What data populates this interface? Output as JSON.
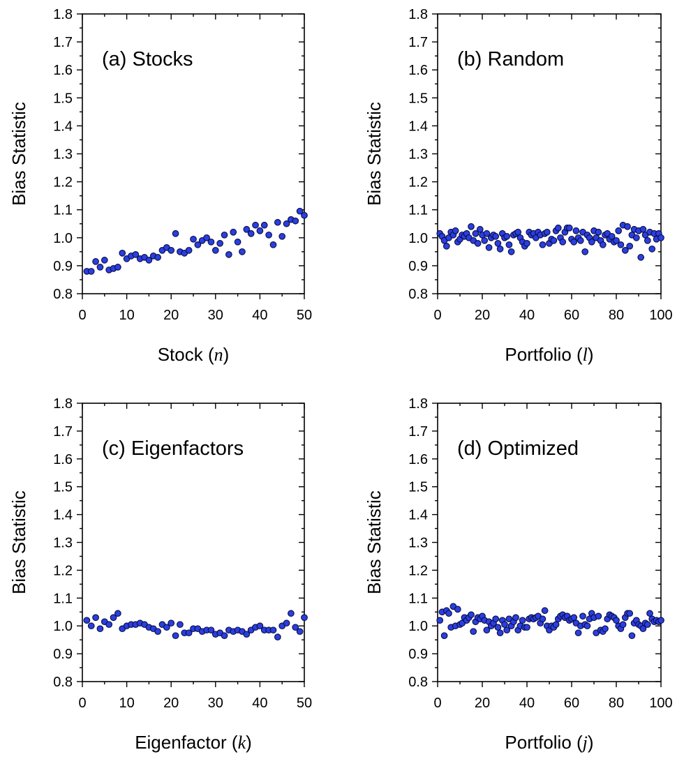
{
  "chart_data": [
    {
      "type": "scatter",
      "panel_label": "(a) Stocks",
      "xlabel": "Stock",
      "xlabel_var": "n",
      "ylabel": "Bias Statistic",
      "xlim": [
        0,
        50
      ],
      "ylim": [
        0.8,
        1.8
      ],
      "xticks": [
        0,
        10,
        20,
        30,
        40,
        50
      ],
      "yticks": [
        0.8,
        0.9,
        1.0,
        1.1,
        1.2,
        1.3,
        1.4,
        1.5,
        1.6,
        1.7,
        1.8
      ],
      "grid": false,
      "marker_color": "#2a3fe0",
      "x": [
        1,
        2,
        3,
        4,
        5,
        6,
        7,
        8,
        9,
        10,
        11,
        12,
        13,
        14,
        15,
        16,
        17,
        18,
        19,
        20,
        21,
        22,
        23,
        24,
        25,
        26,
        27,
        28,
        29,
        30,
        31,
        32,
        33,
        34,
        35,
        36,
        37,
        38,
        39,
        40,
        41,
        42,
        43,
        44,
        45,
        46,
        47,
        48,
        49,
        50
      ],
      "y": [
        0.88,
        0.88,
        0.915,
        0.895,
        0.92,
        0.885,
        0.89,
        0.895,
        0.945,
        0.925,
        0.935,
        0.94,
        0.925,
        0.93,
        0.92,
        0.935,
        0.93,
        0.955,
        0.965,
        0.955,
        1.015,
        0.95,
        0.945,
        0.955,
        0.995,
        0.975,
        0.99,
        1.0,
        0.985,
        0.955,
        0.98,
        1.01,
        0.94,
        1.02,
        0.985,
        0.95,
        1.03,
        1.015,
        1.045,
        1.025,
        1.045,
        1.01,
        0.975,
        1.055,
        1.005,
        1.05,
        1.065,
        1.06,
        1.095,
        1.08
      ]
    },
    {
      "type": "scatter",
      "panel_label": "(b) Random",
      "xlabel": "Portfolio",
      "xlabel_var": "l",
      "ylabel": "Bias Statistic",
      "xlim": [
        0,
        100
      ],
      "ylim": [
        0.8,
        1.8
      ],
      "xticks": [
        0,
        20,
        40,
        60,
        80,
        100
      ],
      "yticks": [
        0.8,
        0.9,
        1.0,
        1.1,
        1.2,
        1.3,
        1.4,
        1.5,
        1.6,
        1.7,
        1.8
      ],
      "grid": false,
      "marker_color": "#2a3fe0",
      "x": [
        1,
        2,
        3,
        4,
        5,
        6,
        7,
        8,
        9,
        10,
        11,
        12,
        13,
        14,
        15,
        16,
        17,
        18,
        19,
        20,
        21,
        22,
        23,
        24,
        25,
        26,
        27,
        28,
        29,
        30,
        31,
        32,
        33,
        34,
        35,
        36,
        37,
        38,
        39,
        40,
        41,
        42,
        43,
        44,
        45,
        46,
        47,
        48,
        49,
        50,
        51,
        52,
        53,
        54,
        55,
        56,
        57,
        58,
        59,
        60,
        61,
        62,
        63,
        64,
        65,
        66,
        67,
        68,
        69,
        70,
        71,
        72,
        73,
        74,
        75,
        76,
        77,
        78,
        79,
        80,
        81,
        82,
        83,
        84,
        85,
        86,
        87,
        88,
        89,
        90,
        91,
        92,
        93,
        94,
        95,
        96,
        97,
        98,
        99,
        100
      ],
      "y": [
        1.015,
        1.005,
        0.99,
        0.97,
        1.0,
        1.02,
        1.01,
        1.025,
        0.985,
        0.995,
        1.01,
        1.005,
        1.015,
        1.0,
        1.04,
        0.99,
        1.015,
        0.98,
        1.03,
        1.01,
        0.99,
        1.015,
        0.965,
        1.0,
        1.01,
        1.005,
        0.98,
        0.96,
        1.015,
        1.0,
        1.005,
        0.975,
        0.95,
        1.01,
        1.015,
        1.02,
        1.0,
        0.985,
        0.97,
        0.98,
        1.02,
        1.01,
        1.015,
        1.0,
        1.02,
        1.01,
        0.975,
        1.015,
        1.02,
        0.98,
        0.995,
        0.99,
        1.025,
        1.035,
        1.0,
        0.985,
        1.02,
        1.035,
        1.035,
        0.995,
        0.985,
        1.025,
        1.0,
        0.99,
        1.02,
        0.95,
        1.01,
        1.0,
        0.985,
        1.025,
        1.0,
        1.02,
        0.99,
        0.975,
        1.01,
        1.015,
        0.995,
        1.005,
        0.985,
        0.99,
        1.025,
        0.975,
        1.045,
        0.955,
        1.04,
        0.97,
        1.01,
        1.03,
        1.0,
        1.025,
        0.93,
        1.03,
        1.01,
        0.99,
        1.02,
        0.96,
        1.015,
        0.995,
        1.015,
        1.0
      ]
    },
    {
      "type": "scatter",
      "panel_label": "(c) Eigenfactors",
      "xlabel": "Eigenfactor",
      "xlabel_var": "k",
      "ylabel": "Bias Statistic",
      "xlim": [
        0,
        50
      ],
      "ylim": [
        0.8,
        1.8
      ],
      "xticks": [
        0,
        10,
        20,
        30,
        40,
        50
      ],
      "yticks": [
        0.8,
        0.9,
        1.0,
        1.1,
        1.2,
        1.3,
        1.4,
        1.5,
        1.6,
        1.7,
        1.8
      ],
      "grid": false,
      "marker_color": "#2a3fe0",
      "x": [
        1,
        2,
        3,
        4,
        5,
        6,
        7,
        8,
        9,
        10,
        11,
        12,
        13,
        14,
        15,
        16,
        17,
        18,
        19,
        20,
        21,
        22,
        23,
        24,
        25,
        26,
        27,
        28,
        29,
        30,
        31,
        32,
        33,
        34,
        35,
        36,
        37,
        38,
        39,
        40,
        41,
        42,
        43,
        44,
        45,
        46,
        47,
        48,
        49,
        50
      ],
      "y": [
        1.02,
        1.0,
        1.03,
        0.99,
        1.015,
        1.005,
        1.03,
        1.045,
        0.99,
        1.0,
        1.005,
        1.005,
        1.01,
        1.005,
        0.995,
        0.99,
        0.98,
        1.005,
        0.995,
        1.01,
        0.965,
        1.005,
        0.975,
        0.975,
        0.99,
        0.99,
        0.98,
        0.985,
        0.985,
        0.97,
        0.975,
        0.965,
        0.985,
        0.98,
        0.985,
        0.98,
        0.97,
        0.985,
        0.995,
        1.0,
        0.985,
        0.985,
        0.985,
        0.96,
        1.0,
        1.01,
        1.045,
        0.995,
        0.98,
        1.03
      ]
    },
    {
      "type": "scatter",
      "panel_label": "(d) Optimized",
      "xlabel": "Portfolio",
      "xlabel_var": "j",
      "ylabel": "Bias Statistic",
      "xlim": [
        0,
        100
      ],
      "ylim": [
        0.8,
        1.8
      ],
      "xticks": [
        0,
        20,
        40,
        60,
        80,
        100
      ],
      "yticks": [
        0.8,
        0.9,
        1.0,
        1.1,
        1.2,
        1.3,
        1.4,
        1.5,
        1.6,
        1.7,
        1.8
      ],
      "grid": false,
      "marker_color": "#2a3fe0",
      "x": [
        1,
        2,
        3,
        4,
        5,
        6,
        7,
        8,
        9,
        10,
        11,
        12,
        13,
        14,
        15,
        16,
        17,
        18,
        19,
        20,
        21,
        22,
        23,
        24,
        25,
        26,
        27,
        28,
        29,
        30,
        31,
        32,
        33,
        34,
        35,
        36,
        37,
        38,
        39,
        40,
        41,
        42,
        43,
        44,
        45,
        46,
        47,
        48,
        49,
        50,
        51,
        52,
        53,
        54,
        55,
        56,
        57,
        58,
        59,
        60,
        61,
        62,
        63,
        64,
        65,
        66,
        67,
        68,
        69,
        70,
        71,
        72,
        73,
        74,
        75,
        76,
        77,
        78,
        79,
        80,
        81,
        82,
        83,
        84,
        85,
        86,
        87,
        88,
        89,
        90,
        91,
        92,
        93,
        94,
        95,
        96,
        97,
        98,
        99,
        100
      ],
      "y": [
        1.02,
        1.05,
        0.965,
        1.055,
        1.045,
        0.995,
        1.07,
        1.0,
        1.06,
        1.005,
        1.01,
        1.03,
        1.02,
        1.03,
        1.04,
        0.98,
        1.015,
        1.03,
        1.025,
        1.035,
        1.02,
        0.985,
        1.015,
        1.0,
        1.01,
        1.025,
        0.995,
        0.975,
        1.02,
        1.005,
        0.985,
        1.025,
        1.0,
        1.015,
        1.03,
        0.985,
        1.0,
        1.02,
        0.995,
        0.995,
        1.025,
        1.03,
        1.025,
        1.03,
        1.035,
        1.01,
        1.025,
        1.055,
        1.0,
        0.985,
        1.0,
        0.995,
        1.005,
        1.025,
        1.035,
        1.04,
        1.03,
        1.035,
        1.02,
        1.025,
        1.03,
        1.01,
        0.975,
        1.0,
        1.035,
        1.005,
        1.0,
        1.025,
        1.045,
        1.03,
        0.975,
        1.035,
        0.985,
        0.98,
        0.99,
        1.025,
        1.04,
        1.035,
        1.03,
        1.02,
        1.0,
        0.99,
        1.005,
        1.03,
        1.045,
        1.045,
        0.965,
        1.01,
        1.02,
        1.005,
        1.0,
        0.99,
        1.01,
        1.005,
        1.045,
        1.025,
        1.015,
        1.02,
        1.015,
        1.02
      ]
    }
  ]
}
